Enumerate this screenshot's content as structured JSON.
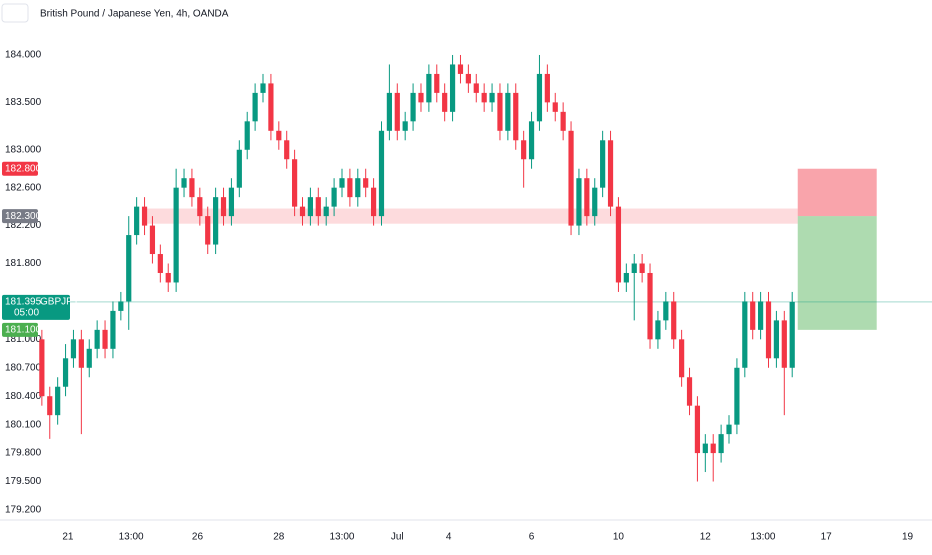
{
  "chart_data": {
    "type": "candlestick",
    "title": "British Pound / Japanese Yen, 4h, OANDA",
    "up_color": "#089981",
    "down_color": "#f23645",
    "xlim": [
      -5.3,
      112.7
    ],
    "ylim": [
      179.094,
      184.58
    ],
    "yticks": [
      {
        "value": 184,
        "label": "184.000"
      },
      {
        "value": 183.5,
        "label": "183.500"
      },
      {
        "value": 183,
        "label": "183.000"
      },
      {
        "value": 182.6,
        "label": "182.600"
      },
      {
        "value": 182.2,
        "label": "182.200"
      },
      {
        "value": 181.8,
        "label": "181.800"
      },
      {
        "value": 181,
        "label": "181.000"
      },
      {
        "value": 180.7,
        "label": "180.700"
      },
      {
        "value": 180.4,
        "label": "180.400"
      },
      {
        "value": 180.1,
        "label": "180.100"
      },
      {
        "value": 179.8,
        "label": "179.800"
      },
      {
        "value": 179.5,
        "label": "179.500"
      },
      {
        "value": 179.2,
        "label": "179.200"
      }
    ],
    "xticks": [
      {
        "value": 3.3,
        "label": "21"
      },
      {
        "value": 11.3,
        "label": "13:00"
      },
      {
        "value": 19.7,
        "label": "26"
      },
      {
        "value": 30,
        "label": "28"
      },
      {
        "value": 38,
        "label": "13:00"
      },
      {
        "value": 45,
        "label": "Jul"
      },
      {
        "value": 51.5,
        "label": "4"
      },
      {
        "value": 62,
        "label": "6"
      },
      {
        "value": 73,
        "label": "10"
      },
      {
        "value": 84,
        "label": "12"
      },
      {
        "value": 91.3,
        "label": "13:00"
      },
      {
        "value": 99.3,
        "label": "17"
      },
      {
        "value": 109.6,
        "label": "19"
      }
    ],
    "open": [
      181.0,
      180.4,
      180.2,
      180.5,
      180.8,
      181.0,
      180.7,
      180.9,
      181.1,
      180.9,
      181.3,
      181.4,
      182.1,
      182.4,
      182.2,
      181.9,
      181.7,
      181.6,
      182.6,
      182.7,
      182.5,
      182.3,
      182.0,
      182.5,
      182.3,
      182.6,
      183.0,
      183.3,
      183.6,
      183.7,
      183.2,
      183.1,
      182.9,
      182.4,
      182.3,
      182.5,
      182.3,
      182.4,
      182.6,
      182.7,
      182.5,
      182.7,
      182.6,
      182.3,
      183.2,
      183.6,
      183.2,
      183.3,
      183.6,
      183.5,
      183.8,
      183.6,
      183.4,
      183.9,
      183.8,
      183.7,
      183.6,
      183.5,
      183.6,
      183.2,
      183.6,
      183.1,
      182.9,
      183.3,
      183.8,
      183.5,
      183.4,
      183.2,
      182.2,
      182.7,
      182.3,
      182.6,
      183.1,
      182.4,
      181.6,
      181.7,
      181.8,
      181.7,
      181.0,
      181.2,
      181.4,
      181.0,
      180.6,
      180.3,
      179.8,
      179.9,
      179.8,
      180.0,
      180.1,
      180.7,
      181.4,
      181.1,
      181.4,
      180.8,
      181.2,
      180.7
    ],
    "high": [
      181.1,
      180.5,
      180.6,
      180.95,
      181.1,
      181.1,
      181.0,
      181.2,
      181.2,
      181.4,
      181.5,
      182.3,
      182.5,
      182.5,
      182.3,
      182.0,
      181.8,
      182.8,
      182.8,
      182.8,
      182.6,
      182.4,
      182.6,
      182.6,
      182.7,
      183.1,
      183.4,
      183.7,
      183.8,
      183.8,
      183.3,
      183.2,
      183.0,
      182.5,
      182.6,
      182.6,
      182.5,
      182.7,
      182.8,
      182.8,
      182.8,
      182.8,
      182.7,
      183.3,
      183.9,
      183.7,
      183.4,
      183.7,
      183.7,
      183.9,
      183.9,
      183.7,
      184.0,
      184.0,
      183.9,
      183.8,
      183.7,
      183.7,
      183.7,
      183.7,
      183.7,
      183.2,
      183.4,
      184.0,
      183.9,
      183.6,
      183.5,
      183.3,
      182.8,
      182.8,
      182.7,
      183.2,
      183.2,
      182.5,
      181.8,
      181.9,
      181.9,
      181.8,
      181.3,
      181.5,
      181.5,
      181.1,
      180.7,
      180.4,
      180.0,
      180.0,
      180.1,
      180.2,
      180.8,
      181.5,
      181.5,
      181.5,
      181.5,
      181.3,
      181.3,
      181.5
    ],
    "low": [
      180.3,
      179.95,
      180.1,
      180.4,
      180.7,
      180.0,
      180.6,
      180.8,
      180.8,
      180.8,
      181.2,
      181.1,
      182.0,
      182.1,
      181.8,
      181.6,
      181.5,
      181.5,
      182.5,
      182.4,
      182.2,
      181.9,
      181.9,
      182.2,
      182.2,
      182.5,
      182.9,
      183.2,
      183.5,
      183.1,
      183.0,
      182.8,
      182.3,
      182.2,
      182.2,
      182.2,
      182.2,
      182.3,
      182.5,
      182.4,
      182.4,
      182.5,
      182.2,
      182.2,
      183.1,
      183.1,
      183.1,
      183.2,
      183.4,
      183.4,
      183.5,
      183.3,
      183.3,
      183.7,
      183.6,
      183.5,
      183.4,
      183.4,
      183.1,
      183.1,
      183.0,
      182.6,
      182.8,
      183.2,
      183.4,
      183.3,
      183.1,
      182.1,
      182.1,
      182.2,
      182.2,
      182.5,
      182.3,
      181.5,
      181.5,
      181.2,
      181.6,
      180.9,
      180.9,
      181.1,
      180.9,
      180.5,
      180.2,
      179.5,
      179.6,
      179.5,
      179.7,
      179.9,
      180.0,
      180.6,
      181.0,
      181.0,
      180.7,
      180.7,
      180.2,
      180.6
    ],
    "close": [
      180.4,
      180.2,
      180.5,
      180.8,
      181.0,
      180.7,
      180.9,
      181.1,
      180.9,
      181.3,
      181.4,
      182.1,
      182.4,
      182.2,
      181.9,
      181.7,
      181.6,
      182.6,
      182.7,
      182.5,
      182.3,
      182.0,
      182.5,
      182.3,
      182.6,
      183.0,
      183.3,
      183.6,
      183.7,
      183.2,
      183.1,
      182.9,
      182.4,
      182.3,
      182.5,
      182.3,
      182.4,
      182.6,
      182.7,
      182.5,
      182.7,
      182.6,
      182.3,
      183.2,
      183.6,
      183.2,
      183.3,
      183.6,
      183.5,
      183.8,
      183.6,
      183.4,
      183.9,
      183.8,
      183.7,
      183.6,
      183.5,
      183.6,
      183.2,
      183.6,
      183.1,
      182.9,
      183.3,
      183.8,
      183.5,
      183.4,
      183.2,
      182.2,
      182.7,
      182.3,
      182.6,
      183.1,
      182.4,
      181.6,
      181.7,
      181.8,
      181.7,
      181.0,
      181.2,
      181.4,
      181.0,
      180.6,
      180.3,
      179.8,
      179.9,
      179.8,
      180.0,
      180.1,
      180.7,
      181.4,
      181.1,
      181.4,
      180.8,
      181.2,
      180.7,
      181.395
    ],
    "zone": [
      182.22,
      182.38
    ],
    "zone_start": 13.2,
    "position_start": 95.7,
    "position_end": 105.7,
    "stop": {
      "value": 182.8,
      "label": "182.800"
    },
    "entry": {
      "value": 182.3,
      "label": "182.300"
    },
    "target": {
      "value": 181.1,
      "label": "181.100"
    },
    "last": {
      "value": 181.395,
      "label": "181.395"
    },
    "symbol": "GBPJPY",
    "countdown": "05:00"
  }
}
